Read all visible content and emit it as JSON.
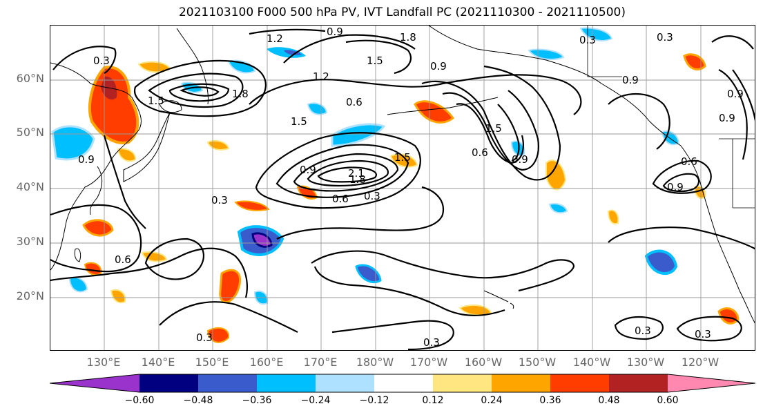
{
  "title": "2021103100 F000 500 hPa PV, IVT Landfall PC (2021110300 - 2021110500)",
  "lat_labels": [
    "60°N",
    "50°N",
    "40°N",
    "30°N",
    "20°N"
  ],
  "lon_labels": [
    "130°E",
    "140°E",
    "150°E",
    "160°E",
    "170°E",
    "180°W",
    "170°W",
    "160°W",
    "150°W",
    "140°W",
    "130°W",
    "120°W"
  ],
  "contour_labels": [
    "1.2",
    "0.9",
    "1.8",
    "0.3",
    "1.5",
    "0.9",
    "0.3",
    "1.2",
    "1.5",
    "1.8",
    "0.6",
    "0.3",
    "0.9",
    "1.5",
    "0.9",
    "1.5",
    "0.6",
    "0.9",
    "2.1",
    "1.8",
    "0.6",
    "0.3",
    "0.3",
    "1.5",
    "0.9",
    "0.9",
    "0.6",
    "0.9",
    "0.6",
    "0.3",
    "0.3",
    "0.3",
    "0.3",
    "0.9"
  ],
  "colorbar": {
    "colors": [
      "#9933cc",
      "#000080",
      "#3a5bcc",
      "#00bfff",
      "#aee0ff",
      "#ffffff",
      "#ffe680",
      "#ffa500",
      "#ff3d00",
      "#b22222",
      "#ff88b0"
    ],
    "tick_labels": [
      "−0.60",
      "−0.48",
      "−0.36",
      "−0.24",
      "−0.12",
      "0.12",
      "0.24",
      "0.36",
      "0.48",
      "0.60"
    ]
  }
}
